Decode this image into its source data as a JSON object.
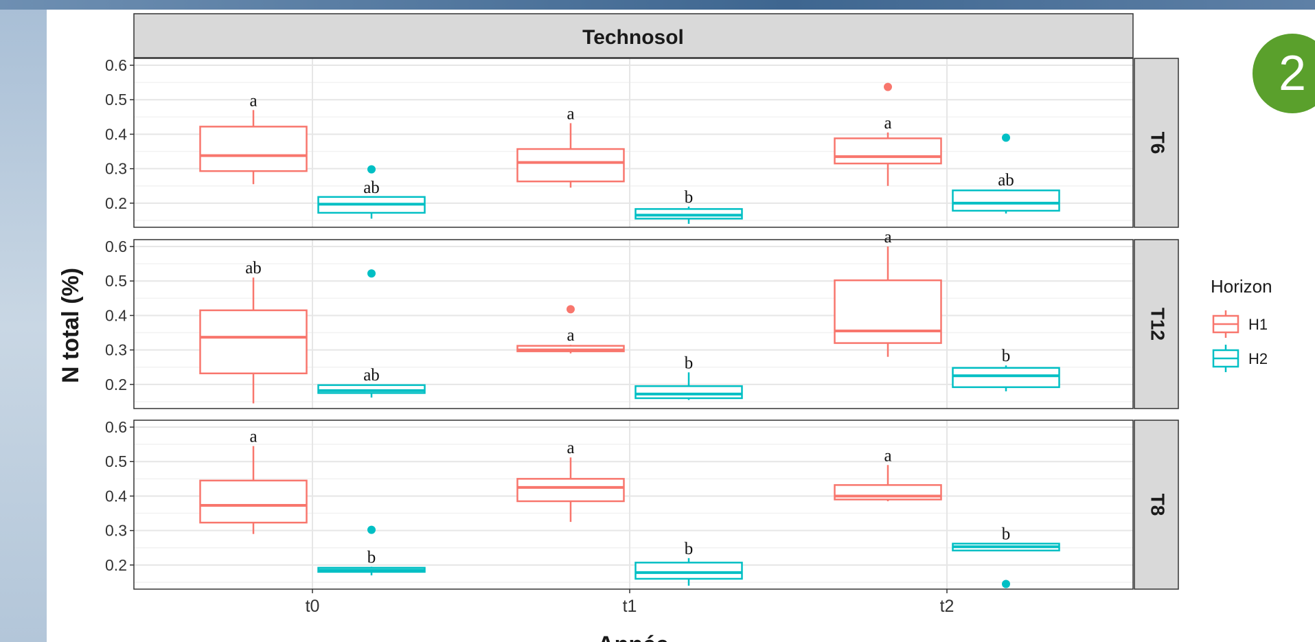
{
  "badge": "2",
  "chart_data": {
    "type": "boxplot",
    "facet_title": "Technosol",
    "xlabel": "Année",
    "ylabel": "N total (%)",
    "categories": [
      "t0",
      "t1",
      "t2"
    ],
    "y_ticks": [
      0.2,
      0.3,
      0.4,
      0.5,
      0.6
    ],
    "ylim": [
      0.13,
      0.62
    ],
    "grid": true,
    "legend": {
      "title": "Horizon",
      "position": "right",
      "items": [
        {
          "name": "H1",
          "color": "#f8766d"
        },
        {
          "name": "H2",
          "color": "#00bfc4"
        }
      ]
    },
    "panels": [
      {
        "label": "T6",
        "boxes": [
          {
            "cat": "t0",
            "series": "H1",
            "min": 0.255,
            "q1": 0.293,
            "median": 0.338,
            "q3": 0.422,
            "max": 0.47,
            "outliers": [],
            "letter": "a"
          },
          {
            "cat": "t0",
            "series": "H2",
            "min": 0.155,
            "q1": 0.172,
            "median": 0.197,
            "q3": 0.218,
            "max": 0.218,
            "outliers": [
              0.298
            ],
            "letter": "ab"
          },
          {
            "cat": "t1",
            "series": "H1",
            "min": 0.245,
            "q1": 0.263,
            "median": 0.318,
            "q3": 0.357,
            "max": 0.432,
            "outliers": [],
            "letter": "a"
          },
          {
            "cat": "t1",
            "series": "H2",
            "min": 0.14,
            "q1": 0.155,
            "median": 0.165,
            "q3": 0.183,
            "max": 0.19,
            "outliers": [],
            "letter": "b"
          },
          {
            "cat": "t2",
            "series": "H1",
            "min": 0.25,
            "q1": 0.315,
            "median": 0.335,
            "q3": 0.388,
            "max": 0.405,
            "outliers": [
              0.537
            ],
            "letter": "a"
          },
          {
            "cat": "t2",
            "series": "H2",
            "min": 0.17,
            "q1": 0.178,
            "median": 0.2,
            "q3": 0.237,
            "max": 0.24,
            "outliers": [
              0.39
            ],
            "letter": "ab"
          }
        ]
      },
      {
        "label": "T12",
        "boxes": [
          {
            "cat": "t0",
            "series": "H1",
            "min": 0.145,
            "q1": 0.232,
            "median": 0.337,
            "q3": 0.415,
            "max": 0.51,
            "outliers": [],
            "letter": "ab"
          },
          {
            "cat": "t0",
            "series": "H2",
            "min": 0.162,
            "q1": 0.175,
            "median": 0.182,
            "q3": 0.198,
            "max": 0.2,
            "outliers": [
              0.522
            ],
            "letter": "ab"
          },
          {
            "cat": "t1",
            "series": "H1",
            "min": 0.29,
            "q1": 0.296,
            "median": 0.3,
            "q3": 0.312,
            "max": 0.315,
            "outliers": [
              0.418
            ],
            "letter": "a"
          },
          {
            "cat": "t1",
            "series": "H2",
            "min": 0.155,
            "q1": 0.16,
            "median": 0.172,
            "q3": 0.195,
            "max": 0.235,
            "outliers": [],
            "letter": "b"
          },
          {
            "cat": "t2",
            "series": "H1",
            "min": 0.28,
            "q1": 0.32,
            "median": 0.355,
            "q3": 0.502,
            "max": 0.6,
            "outliers": [],
            "letter": "a"
          },
          {
            "cat": "t2",
            "series": "H2",
            "min": 0.18,
            "q1": 0.192,
            "median": 0.225,
            "q3": 0.248,
            "max": 0.255,
            "outliers": [],
            "letter": "b"
          }
        ]
      },
      {
        "label": "T8",
        "boxes": [
          {
            "cat": "t0",
            "series": "H1",
            "min": 0.29,
            "q1": 0.323,
            "median": 0.373,
            "q3": 0.445,
            "max": 0.545,
            "outliers": [],
            "letter": "a"
          },
          {
            "cat": "t0",
            "series": "H2",
            "min": 0.17,
            "q1": 0.18,
            "median": 0.185,
            "q3": 0.192,
            "max": 0.195,
            "outliers": [
              0.302
            ],
            "letter": "b"
          },
          {
            "cat": "t1",
            "series": "H1",
            "min": 0.325,
            "q1": 0.385,
            "median": 0.425,
            "q3": 0.45,
            "max": 0.512,
            "outliers": [],
            "letter": "a"
          },
          {
            "cat": "t1",
            "series": "H2",
            "min": 0.14,
            "q1": 0.16,
            "median": 0.178,
            "q3": 0.207,
            "max": 0.22,
            "outliers": [],
            "letter": "b"
          },
          {
            "cat": "t2",
            "series": "H1",
            "min": 0.385,
            "q1": 0.39,
            "median": 0.4,
            "q3": 0.432,
            "max": 0.49,
            "outliers": [],
            "letter": "a"
          },
          {
            "cat": "t2",
            "series": "H2",
            "min": 0.242,
            "q1": 0.242,
            "median": 0.253,
            "q3": 0.262,
            "max": 0.262,
            "outliers": [
              0.145
            ],
            "letter": "b"
          }
        ]
      }
    ]
  }
}
